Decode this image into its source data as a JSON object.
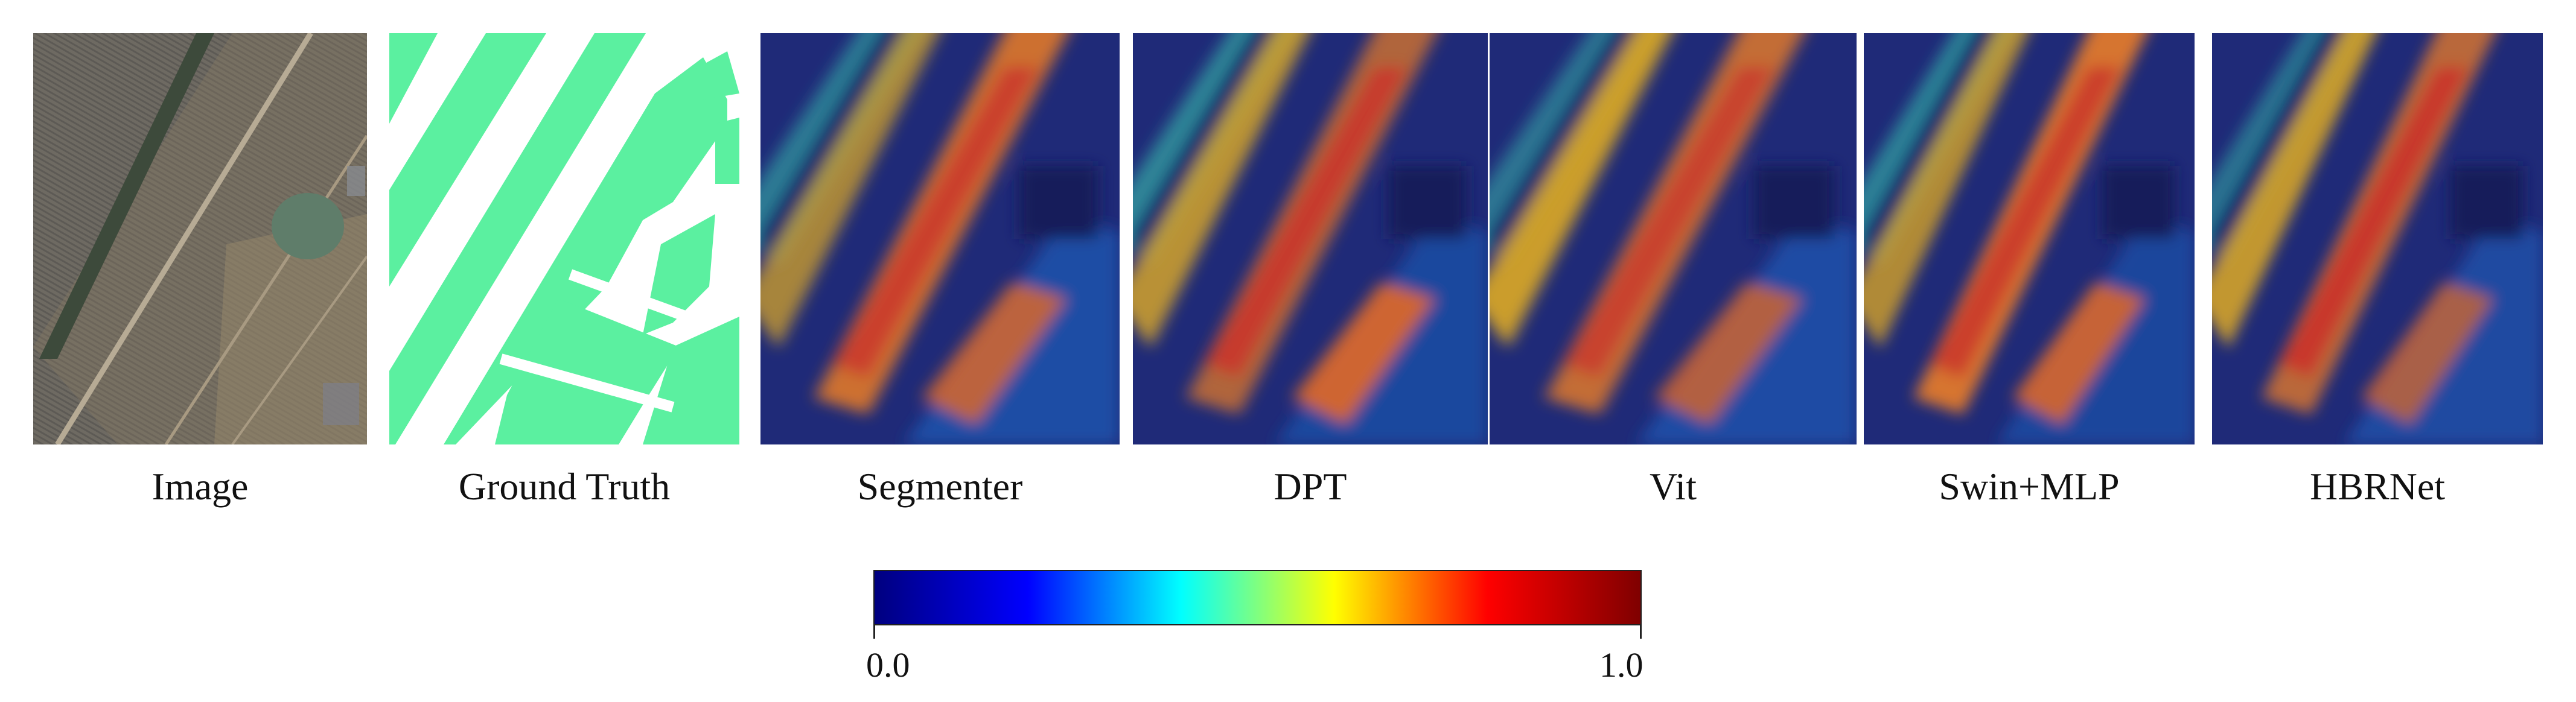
{
  "panels": [
    {
      "label": "Image",
      "kind": "satellite-image"
    },
    {
      "label": "Ground Truth",
      "kind": "ground-truth-mask",
      "mask_color": "#5bf0a0"
    },
    {
      "label": "Segmenter",
      "kind": "attention-heatmap"
    },
    {
      "label": "DPT",
      "kind": "attention-heatmap"
    },
    {
      "label": "Vit",
      "kind": "attention-heatmap"
    },
    {
      "label": "Swin+MLP",
      "kind": "attention-heatmap"
    },
    {
      "label": "HBRNet",
      "kind": "attention-heatmap"
    }
  ],
  "colorbar": {
    "min_label": "0.0",
    "max_label": "1.0",
    "colormap": "jet",
    "colors": [
      "#00007f",
      "#0000ff",
      "#00ffff",
      "#ffff00",
      "#ff0000",
      "#7f0000"
    ]
  }
}
